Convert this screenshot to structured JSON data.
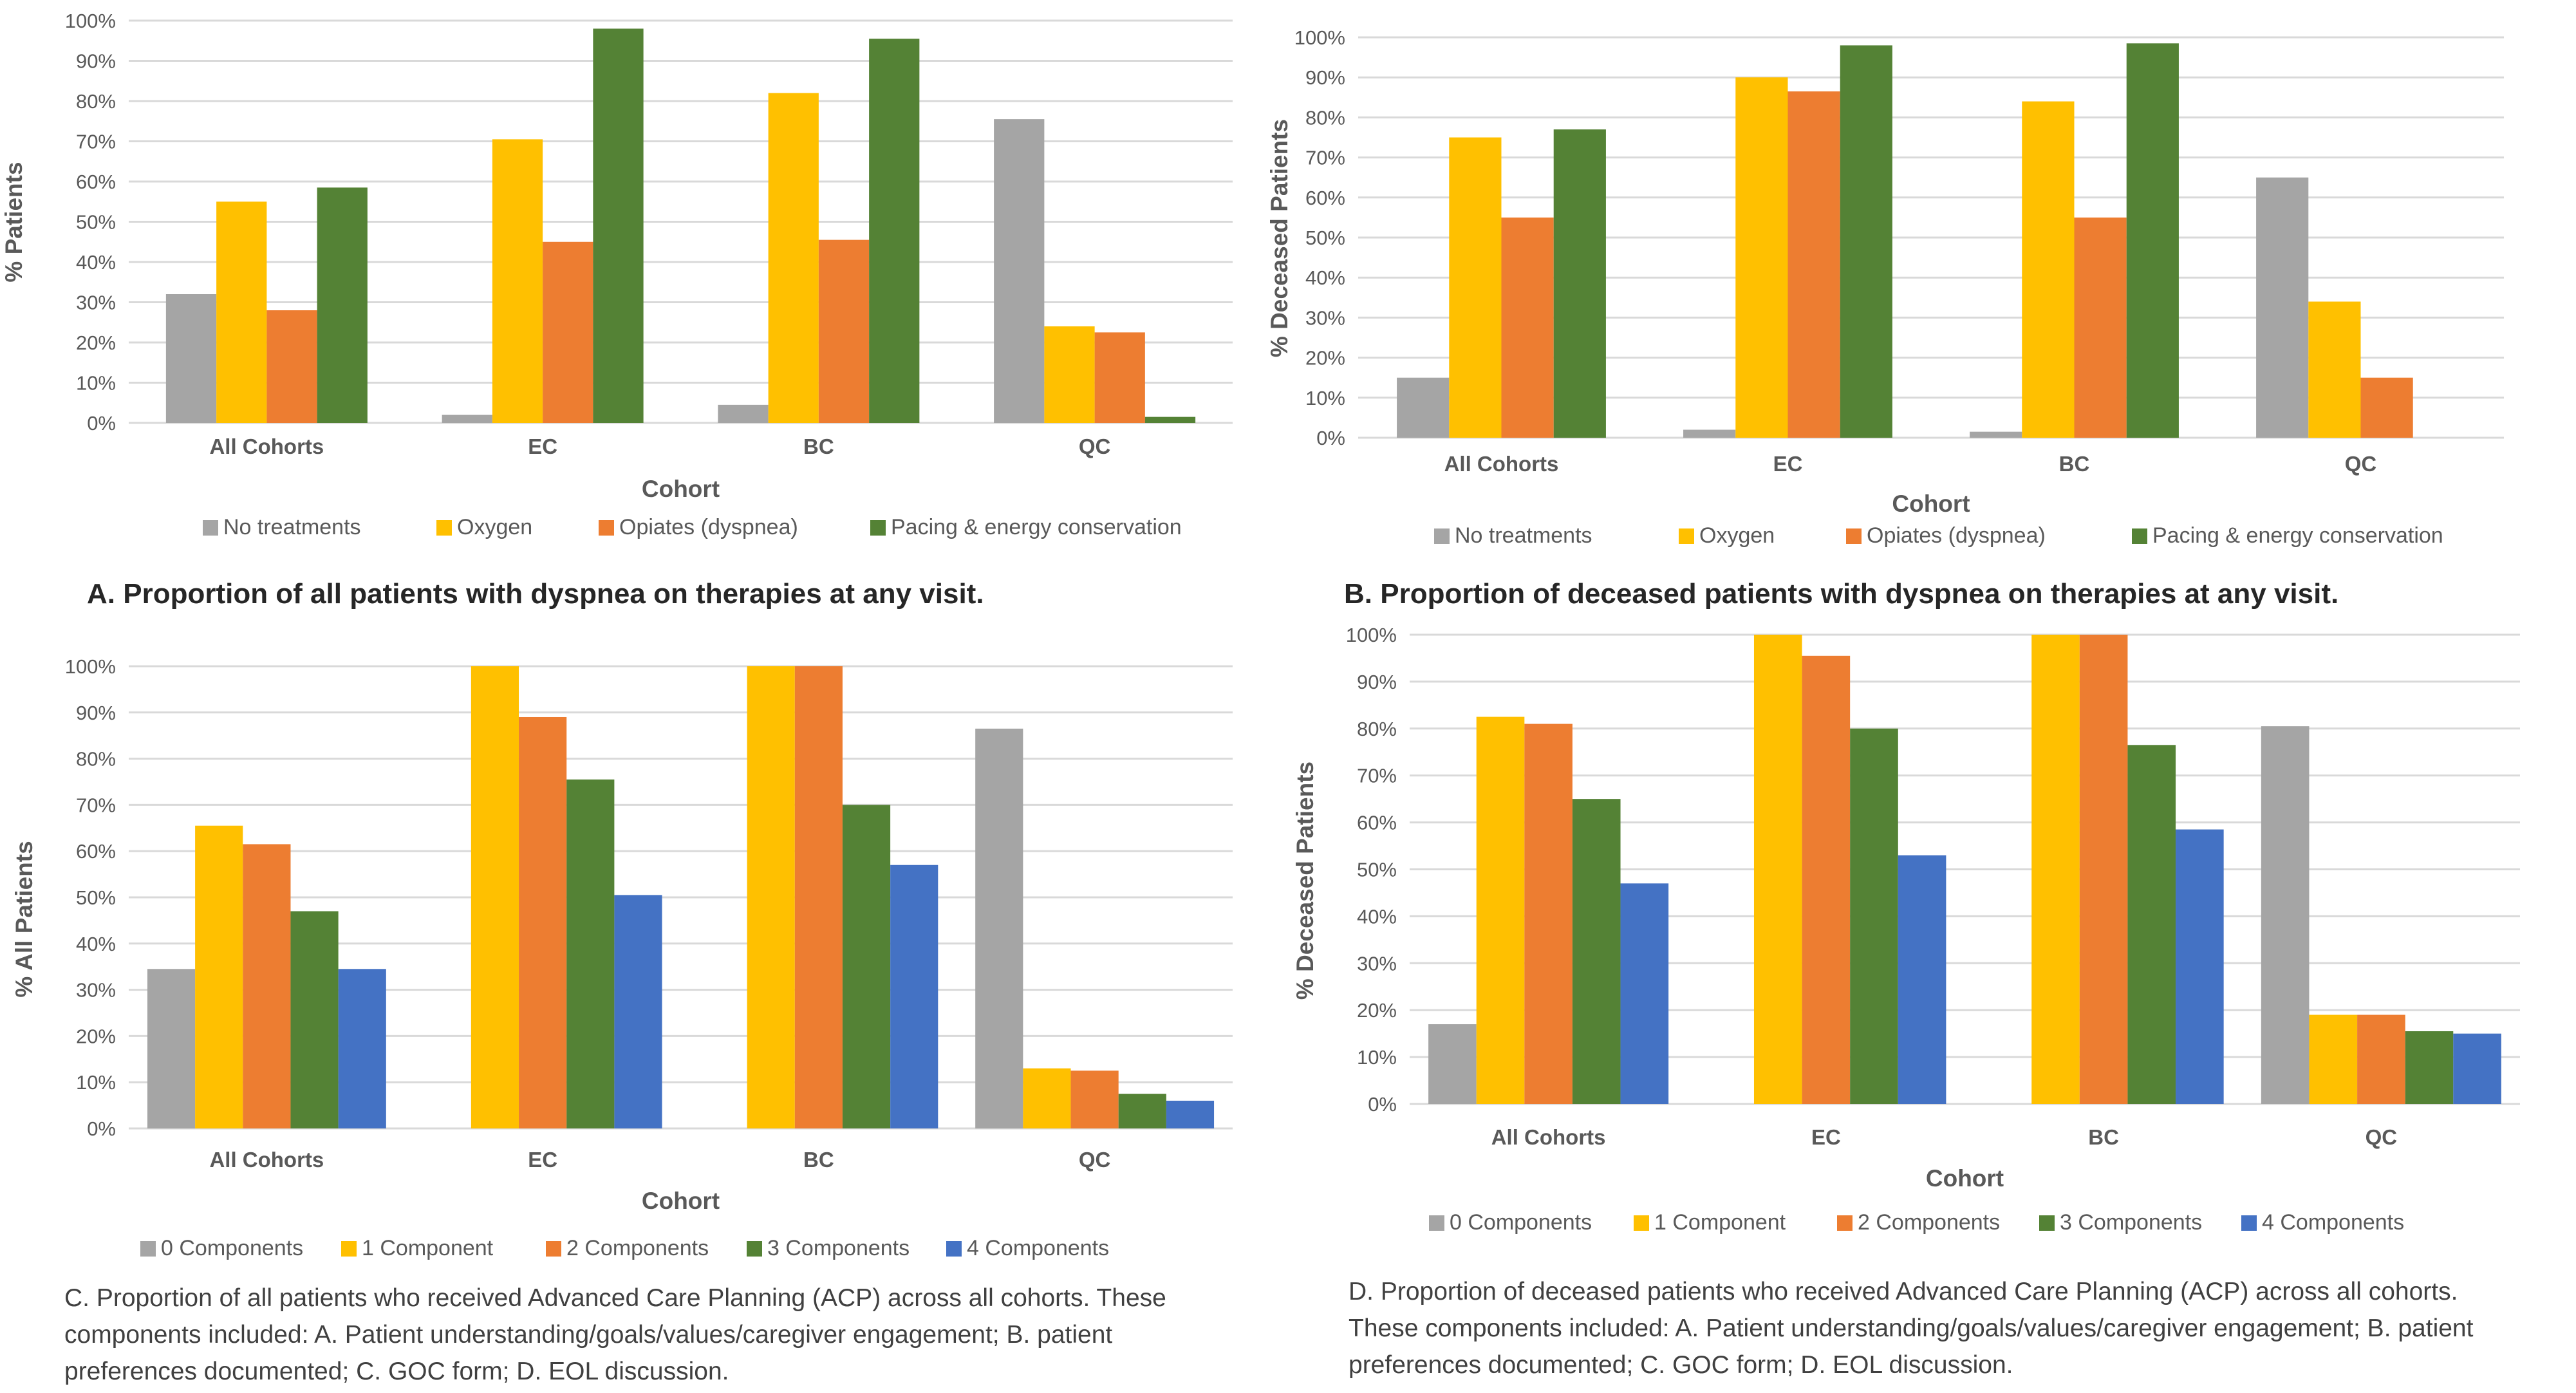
{
  "colors": {
    "gray": "#a5a5a5",
    "yellow": "#ffc000",
    "orange": "#ed7d31",
    "green": "#548235",
    "blue": "#4472c4",
    "grid": "#d9d9d9",
    "axis_text": "#595959"
  },
  "chart_data": [
    {
      "id": "A",
      "type": "bar",
      "title": "",
      "xlabel": "Cohort",
      "ylabel": "% Patients",
      "ylim": [
        0,
        100
      ],
      "y_ticks": [
        "0%",
        "10%",
        "20%",
        "30%",
        "40%",
        "50%",
        "60%",
        "70%",
        "80%",
        "90%",
        "100%"
      ],
      "categories": [
        "All Cohorts",
        "EC",
        "BC",
        "QC"
      ],
      "series": [
        {
          "name": "No treatments",
          "color": "#a5a5a5",
          "values": [
            32,
            2,
            4.5,
            75.5
          ]
        },
        {
          "name": "Oxygen",
          "color": "#ffc000",
          "values": [
            55,
            70.5,
            82,
            24
          ]
        },
        {
          "name": "Opiates (dyspnea)",
          "color": "#ed7d31",
          "values": [
            28,
            45,
            45.5,
            22.5
          ]
        },
        {
          "name": "Pacing & energy conservation",
          "color": "#548235",
          "values": [
            58.5,
            98,
            95.5,
            1.5
          ]
        }
      ],
      "legend": "bottom",
      "caption": "A. Proportion of all patients with dyspnea on therapies at any visit."
    },
    {
      "id": "B",
      "type": "bar",
      "title": "",
      "xlabel": "Cohort",
      "ylabel": "% Deceased Patients",
      "ylim": [
        0,
        100
      ],
      "y_ticks": [
        "0%",
        "10%",
        "20%",
        "30%",
        "40%",
        "50%",
        "60%",
        "70%",
        "80%",
        "90%",
        "100%"
      ],
      "categories": [
        "All Cohorts",
        "EC",
        "BC",
        "QC"
      ],
      "series": [
        {
          "name": "No treatments",
          "color": "#a5a5a5",
          "values": [
            15,
            2,
            1.5,
            65
          ]
        },
        {
          "name": "Oxygen",
          "color": "#ffc000",
          "values": [
            75,
            90,
            84,
            34
          ]
        },
        {
          "name": "Opiates (dyspnea)",
          "color": "#ed7d31",
          "values": [
            55,
            86.5,
            55,
            15
          ]
        },
        {
          "name": "Pacing & energy conservation",
          "color": "#548235",
          "values": [
            77,
            98,
            98.5,
            0
          ]
        }
      ],
      "legend": "bottom",
      "caption": "B. Proportion of deceased patients with dyspnea on therapies at any visit."
    },
    {
      "id": "C",
      "type": "bar",
      "title": "",
      "xlabel": "Cohort",
      "ylabel": "% All Patients",
      "ylim": [
        0,
        100
      ],
      "y_ticks": [
        "0%",
        "10%",
        "20%",
        "30%",
        "40%",
        "50%",
        "60%",
        "70%",
        "80%",
        "90%",
        "100%"
      ],
      "categories": [
        "All Cohorts",
        "EC",
        "BC",
        "QC"
      ],
      "series": [
        {
          "name": "0 Components",
          "color": "#a5a5a5",
          "values": [
            34.5,
            0,
            0,
            86.5
          ]
        },
        {
          "name": "1 Component",
          "color": "#ffc000",
          "values": [
            65.5,
            100,
            100,
            13
          ]
        },
        {
          "name": "2 Components",
          "color": "#ed7d31",
          "values": [
            61.5,
            89,
            100,
            12.5
          ]
        },
        {
          "name": "3 Components",
          "color": "#548235",
          "values": [
            47,
            75.5,
            70,
            7.5
          ]
        },
        {
          "name": "4 Components",
          "color": "#4472c4",
          "values": [
            34.5,
            50.5,
            57,
            6
          ]
        }
      ],
      "legend": "bottom",
      "caption": "C. Proportion of all patients who received Advanced Care Planning (ACP) across all cohorts. These components included: A. Patient understanding/goals/values/caregiver engagement; B. patient preferences documented; C. GOC form; D. EOL discussion."
    },
    {
      "id": "D",
      "type": "bar",
      "title": "",
      "xlabel": "Cohort",
      "ylabel": "% Deceased  Patients",
      "ylim": [
        0,
        100
      ],
      "y_ticks": [
        "0%",
        "10%",
        "20%",
        "30%",
        "40%",
        "50%",
        "60%",
        "70%",
        "80%",
        "90%",
        "100%"
      ],
      "categories": [
        "All Cohorts",
        "EC",
        "BC",
        "QC"
      ],
      "series": [
        {
          "name": "0 Components",
          "color": "#a5a5a5",
          "values": [
            17,
            0,
            0,
            80.5
          ]
        },
        {
          "name": "1 Component",
          "color": "#ffc000",
          "values": [
            82.5,
            100,
            100,
            19
          ]
        },
        {
          "name": "2 Components",
          "color": "#ed7d31",
          "values": [
            81,
            95.5,
            100,
            19
          ]
        },
        {
          "name": "3 Components",
          "color": "#548235",
          "values": [
            65,
            80,
            76.5,
            15.5
          ]
        },
        {
          "name": "4 Components",
          "color": "#4472c4",
          "values": [
            47,
            53,
            58.5,
            15
          ]
        }
      ],
      "legend": "bottom",
      "caption": "D. Proportion of deceased patients who received Advanced Care Planning (ACP) across all cohorts. These components included: A. Patient understanding/goals/values/caregiver engagement; B. patient preferences documented; C. GOC form; D. EOL discussion."
    }
  ]
}
